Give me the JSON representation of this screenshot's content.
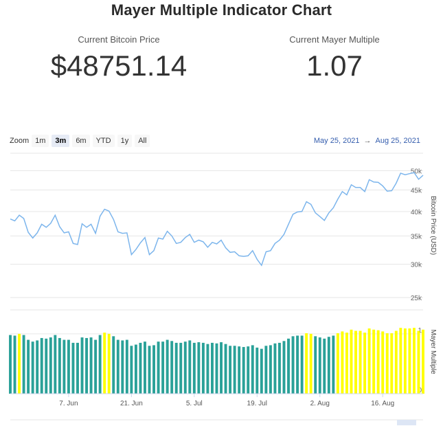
{
  "title": "Mayer Multiple Indicator Chart",
  "stats": {
    "price_label": "Current Bitcoin Price",
    "price_value": "$48751.14",
    "mayer_label": "Current Mayer Multiple",
    "mayer_value": "1.07"
  },
  "zoom": {
    "label": "Zoom",
    "buttons": [
      "1m",
      "3m",
      "6m",
      "YTD",
      "1y",
      "All"
    ],
    "active": "3m"
  },
  "range": {
    "from": "May 25, 2021",
    "arrow": "→",
    "to": "Aug 25, 2021"
  },
  "colors": {
    "line": "#7cb5ec",
    "bar_normal": "#2aa198",
    "bar_high": "#ffff00",
    "grid": "#e6e6e6"
  },
  "chart_data": {
    "type": "line+bar",
    "price_axis": {
      "label": "Bitcoin Price (USD)",
      "scale": "log",
      "ylim": [
        25000,
        55000
      ],
      "ticks": [
        25000,
        30000,
        35000,
        40000,
        45000,
        50000
      ],
      "tick_labels": [
        "25k",
        "30k",
        "35k",
        "40k",
        "45k",
        "50k"
      ]
    },
    "mayer_axis": {
      "label": "Mayer Multiple",
      "ylim": [
        0,
        1.4
      ],
      "ticks": [
        0,
        1
      ],
      "tick_labels": [
        "0",
        "1"
      ]
    },
    "x_ticks": [
      {
        "day": 13,
        "label": "7. Jun"
      },
      {
        "day": 27,
        "label": "21. Jun"
      },
      {
        "day": 41,
        "label": "5. Jul"
      },
      {
        "day": 55,
        "label": "19. Jul"
      },
      {
        "day": 69,
        "label": "2. Aug"
      },
      {
        "day": 83,
        "label": "16. Aug"
      }
    ],
    "x_range_days": [
      0,
      92
    ],
    "series": [
      {
        "name": "Bitcoin Price (USD)",
        "kind": "line",
        "values": [
          38400,
          38000,
          39200,
          38500,
          35700,
          34600,
          35600,
          37300,
          36700,
          37500,
          39200,
          36800,
          35600,
          35800,
          33600,
          33400,
          37400,
          36700,
          37300,
          35500,
          39000,
          40500,
          40100,
          38300,
          35800,
          35500,
          35600,
          31600,
          32500,
          33700,
          34700,
          31600,
          32300,
          34600,
          34400,
          35900,
          35000,
          33600,
          33800,
          34700,
          35300,
          33800,
          34200,
          33900,
          32900,
          33800,
          33500,
          34200,
          32800,
          32000,
          32100,
          31400,
          31300,
          31400,
          32300,
          30800,
          29800,
          32100,
          32300,
          33600,
          34200,
          35300,
          37300,
          39400,
          39900,
          40000,
          42200,
          41600,
          39700,
          38900,
          38100,
          39700,
          40800,
          42800,
          44600,
          43800,
          46300,
          45600,
          45600,
          44600,
          47600,
          47000,
          46900,
          46000,
          44700,
          44800,
          46700,
          49300,
          48900,
          49200,
          49500,
          47700,
          48751
        ]
      },
      {
        "name": "Mayer Multiple",
        "kind": "bar",
        "values": [
          0.98,
          0.97,
          1.0,
          0.98,
          0.9,
          0.87,
          0.89,
          0.93,
          0.92,
          0.94,
          0.98,
          0.93,
          0.9,
          0.9,
          0.85,
          0.85,
          0.94,
          0.93,
          0.94,
          0.9,
          0.98,
          1.02,
          1.0,
          0.96,
          0.9,
          0.89,
          0.9,
          0.8,
          0.82,
          0.85,
          0.87,
          0.8,
          0.81,
          0.87,
          0.87,
          0.9,
          0.88,
          0.85,
          0.85,
          0.87,
          0.89,
          0.85,
          0.86,
          0.85,
          0.83,
          0.85,
          0.84,
          0.86,
          0.83,
          0.8,
          0.8,
          0.79,
          0.78,
          0.79,
          0.81,
          0.77,
          0.75,
          0.8,
          0.81,
          0.84,
          0.85,
          0.88,
          0.92,
          0.96,
          0.97,
          0.97,
          1.01,
          1.0,
          0.96,
          0.94,
          0.92,
          0.95,
          0.97,
          1.01,
          1.04,
          1.02,
          1.07,
          1.05,
          1.05,
          1.02,
          1.09,
          1.07,
          1.06,
          1.04,
          1.01,
          1.01,
          1.05,
          1.1,
          1.09,
          1.09,
          1.1,
          1.05,
          1.07
        ]
      }
    ],
    "highlight_threshold": 1.0
  }
}
